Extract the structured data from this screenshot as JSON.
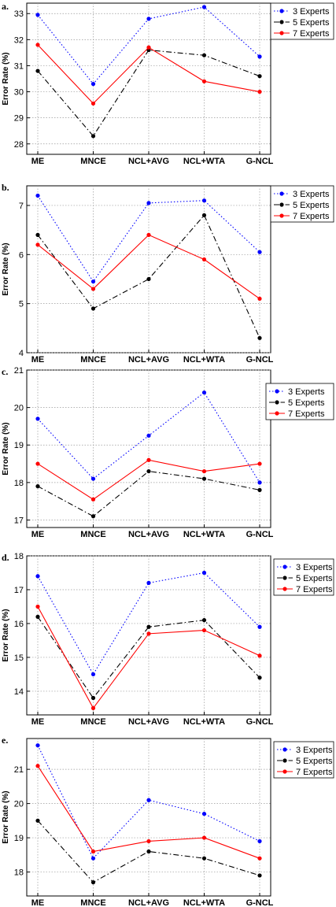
{
  "chart_data": [
    {
      "type": "line",
      "panel_label": "a.",
      "ylabel": "Error Rate (%)",
      "categories": [
        "ME",
        "MNCE",
        "NCL+AVG",
        "NCL+WTA",
        "G-NCL"
      ],
      "ylim": [
        27.6,
        33.4
      ],
      "yticks": [
        28,
        29,
        30,
        31,
        32,
        33
      ],
      "grid": true,
      "legend_position": "top-right",
      "series": [
        {
          "name": "3 Experts",
          "color": "#0000ff",
          "dash": "dot",
          "values": [
            32.95,
            30.3,
            32.8,
            33.25,
            31.35
          ]
        },
        {
          "name": "5 Experts",
          "color": "#000000",
          "dash": "dashdot",
          "values": [
            30.8,
            28.3,
            31.6,
            31.4,
            30.6
          ]
        },
        {
          "name": "7 Experts",
          "color": "#ff0000",
          "dash": "solid",
          "values": [
            31.8,
            29.55,
            31.7,
            30.4,
            30.0
          ]
        }
      ]
    },
    {
      "type": "line",
      "panel_label": "b.",
      "ylabel": "Error Rate (%)",
      "categories": [
        "ME",
        "MNCE",
        "NCL+AVG",
        "NCL+WTA",
        "G-NCL"
      ],
      "ylim": [
        4,
        7.4
      ],
      "yticks": [
        4,
        5,
        6,
        7
      ],
      "grid": true,
      "legend_position": "right",
      "series": [
        {
          "name": "3 Experts",
          "color": "#0000ff",
          "dash": "dot",
          "values": [
            7.2,
            5.45,
            7.05,
            7.1,
            6.05
          ]
        },
        {
          "name": "5 Experts",
          "color": "#000000",
          "dash": "dashdot",
          "values": [
            6.4,
            4.9,
            5.5,
            6.8,
            4.3
          ]
        },
        {
          "name": "7 Experts",
          "color": "#ff0000",
          "dash": "solid",
          "values": [
            6.2,
            5.3,
            6.4,
            5.9,
            5.1
          ]
        }
      ]
    },
    {
      "type": "line",
      "panel_label": "c.",
      "ylabel": "Error Rate (%)",
      "categories": [
        "ME",
        "MNCE",
        "NCL+AVG",
        "NCL+WTA",
        "G-NCL"
      ],
      "ylim": [
        16.8,
        21
      ],
      "yticks": [
        17,
        18,
        19,
        20,
        21
      ],
      "grid": true,
      "legend_position": "top-right",
      "series": [
        {
          "name": "3 Experts",
          "color": "#0000ff",
          "dash": "dot",
          "values": [
            19.7,
            18.1,
            19.25,
            20.4,
            18.0
          ]
        },
        {
          "name": "5 Experts",
          "color": "#000000",
          "dash": "dashdot",
          "values": [
            17.9,
            17.1,
            18.3,
            18.1,
            17.8
          ]
        },
        {
          "name": "7 Experts",
          "color": "#ff0000",
          "dash": "solid",
          "values": [
            18.5,
            17.55,
            18.6,
            18.3,
            18.5
          ]
        }
      ]
    },
    {
      "type": "line",
      "panel_label": "d.",
      "ylabel": "Error Rate (%)",
      "categories": [
        "ME",
        "MNCE",
        "NCL+AVG",
        "NCL+WTA",
        "G-NCL"
      ],
      "ylim": [
        13.3,
        18
      ],
      "yticks": [
        14,
        15,
        16,
        17,
        18
      ],
      "grid": true,
      "legend_position": "right",
      "series": [
        {
          "name": "3 Experts",
          "color": "#0000ff",
          "dash": "dot",
          "values": [
            17.4,
            14.5,
            17.2,
            17.5,
            15.9
          ]
        },
        {
          "name": "5 Experts",
          "color": "#000000",
          "dash": "dashdot",
          "values": [
            16.2,
            13.8,
            15.9,
            16.1,
            14.4
          ]
        },
        {
          "name": "7 Experts",
          "color": "#ff0000",
          "dash": "solid",
          "values": [
            16.5,
            13.5,
            15.7,
            15.8,
            15.05
          ]
        }
      ]
    },
    {
      "type": "line",
      "panel_label": "e.",
      "ylabel": "Error Rate (%)",
      "categories": [
        "ME",
        "MNCE",
        "NCL+AVG",
        "NCL+WTA",
        "G-NCL"
      ],
      "ylim": [
        17.3,
        21.9
      ],
      "yticks": [
        18,
        19,
        20,
        21
      ],
      "grid": true,
      "legend_position": "right",
      "series": [
        {
          "name": "3 Experts",
          "color": "#0000ff",
          "dash": "dot",
          "values": [
            21.7,
            18.4,
            20.1,
            19.7,
            18.9
          ]
        },
        {
          "name": "5 Experts",
          "color": "#000000",
          "dash": "dashdot",
          "values": [
            19.5,
            17.7,
            18.6,
            18.4,
            17.9
          ]
        },
        {
          "name": "7 Experts",
          "color": "#ff0000",
          "dash": "solid",
          "values": [
            21.1,
            18.6,
            18.9,
            19.0,
            18.4
          ]
        }
      ]
    }
  ]
}
